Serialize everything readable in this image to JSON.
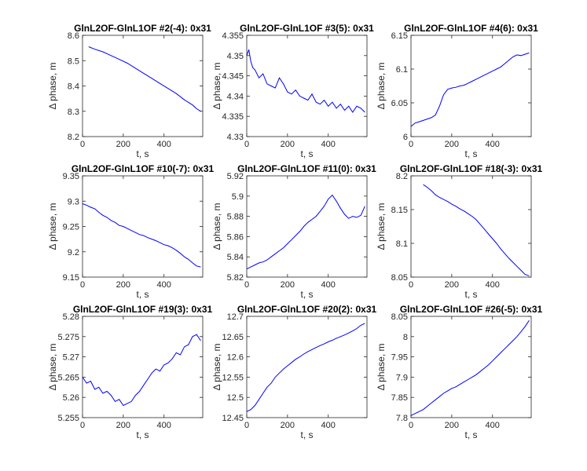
{
  "chart_data": [
    {
      "type": "line",
      "title": "GlnL2OF-GlnL1OF #2(-4): 0x31",
      "xlabel": "t, s",
      "ylabel": "Δ phase, m",
      "xlim": [
        0,
        590
      ],
      "ylim": [
        8.2,
        8.6
      ],
      "xticks": [
        "0",
        "200",
        "400"
      ],
      "yticks": [
        "8.2",
        "8.3",
        "8.4",
        "8.5",
        "8.6"
      ],
      "series": [
        {
          "color": "#0000ff",
          "x": [
            30,
            60,
            100,
            140,
            180,
            220,
            260,
            300,
            340,
            380,
            420,
            460,
            500,
            540,
            560,
            580
          ],
          "y": [
            8.555,
            8.545,
            8.535,
            8.52,
            8.505,
            8.49,
            8.47,
            8.45,
            8.43,
            8.41,
            8.39,
            8.37,
            8.345,
            8.325,
            8.31,
            8.3
          ]
        }
      ]
    },
    {
      "type": "line",
      "title": "GlnL2OF-GlnL1OF #3(5): 0x31",
      "xlabel": "t, s",
      "ylabel": "Δ phase, m",
      "xlim": [
        0,
        590
      ],
      "ylim": [
        4.33,
        4.355
      ],
      "xticks": [
        "0",
        "200",
        "400"
      ],
      "yticks": [
        "4.33",
        "4.335",
        "4.34",
        "4.345",
        "4.35",
        "4.355"
      ],
      "series": [
        {
          "color": "#0000ff",
          "x": [
            0,
            10,
            20,
            30,
            40,
            60,
            80,
            100,
            120,
            140,
            160,
            180,
            200,
            220,
            240,
            260,
            280,
            300,
            320,
            340,
            360,
            380,
            400,
            420,
            440,
            460,
            480,
            500,
            520,
            540,
            560,
            580
          ],
          "y": [
            4.35,
            4.3515,
            4.3485,
            4.347,
            4.3465,
            4.3445,
            4.3455,
            4.343,
            4.3425,
            4.342,
            4.3445,
            4.343,
            4.341,
            4.3405,
            4.3415,
            4.34,
            4.3395,
            4.339,
            4.3405,
            4.3385,
            4.338,
            4.339,
            4.3375,
            4.3385,
            4.337,
            4.338,
            4.3365,
            4.3375,
            4.336,
            4.3375,
            4.337,
            4.336
          ]
        }
      ]
    },
    {
      "type": "line",
      "title": "GlnL2OF-GlnL1OF #4(6): 0x31",
      "xlabel": "t, s",
      "ylabel": "Δ phase, m",
      "xlim": [
        0,
        590
      ],
      "ylim": [
        6,
        6.15
      ],
      "xticks": [
        "0",
        "200",
        "400"
      ],
      "yticks": [
        "6",
        "6.05",
        "6.1",
        "6.15"
      ],
      "series": [
        {
          "color": "#0000ff",
          "x": [
            0,
            20,
            40,
            60,
            80,
            100,
            120,
            140,
            160,
            180,
            200,
            220,
            240,
            260,
            280,
            300,
            320,
            340,
            360,
            380,
            400,
            420,
            440,
            460,
            480,
            500,
            520,
            540,
            560,
            580
          ],
          "y": [
            6.015,
            6.02,
            6.022,
            6.024,
            6.026,
            6.028,
            6.032,
            6.045,
            6.062,
            6.07,
            6.072,
            6.073,
            6.075,
            6.076,
            6.079,
            6.082,
            6.085,
            6.088,
            6.091,
            6.094,
            6.097,
            6.1,
            6.103,
            6.108,
            6.113,
            6.118,
            6.121,
            6.12,
            6.122,
            6.124
          ]
        }
      ]
    },
    {
      "type": "line",
      "title": "GlnL2OF-GlnL1OF #10(-7): 0x31",
      "xlabel": "t, s",
      "ylabel": "Δ phase, m",
      "xlim": [
        0,
        590
      ],
      "ylim": [
        9.15,
        9.35
      ],
      "xticks": [
        "0",
        "200",
        "400"
      ],
      "yticks": [
        "9.15",
        "9.2",
        "9.25",
        "9.3",
        "9.35"
      ],
      "series": [
        {
          "color": "#0000ff",
          "x": [
            0,
            20,
            40,
            60,
            80,
            100,
            120,
            140,
            160,
            180,
            200,
            220,
            240,
            260,
            280,
            300,
            320,
            340,
            360,
            380,
            400,
            420,
            440,
            460,
            480,
            500,
            520,
            540,
            560,
            580
          ],
          "y": [
            9.295,
            9.292,
            9.288,
            9.285,
            9.278,
            9.272,
            9.268,
            9.262,
            9.258,
            9.252,
            9.25,
            9.246,
            9.242,
            9.238,
            9.234,
            9.232,
            9.228,
            9.225,
            9.222,
            9.218,
            9.214,
            9.212,
            9.208,
            9.203,
            9.197,
            9.19,
            9.185,
            9.178,
            9.172,
            9.17
          ]
        }
      ]
    },
    {
      "type": "line",
      "title": "GlnL2OF-GlnL1OF #11(0): 0x31",
      "xlabel": "t, s",
      "ylabel": "Δ phase, m",
      "xlim": [
        0,
        590
      ],
      "ylim": [
        5.82,
        5.92
      ],
      "xticks": [
        "0",
        "200",
        "400"
      ],
      "yticks": [
        "5.82",
        "5.84",
        "5.86",
        "5.88",
        "5.9",
        "5.92"
      ],
      "series": [
        {
          "color": "#0000ff",
          "x": [
            0,
            20,
            40,
            60,
            80,
            100,
            120,
            140,
            160,
            180,
            200,
            220,
            240,
            260,
            280,
            300,
            320,
            340,
            360,
            380,
            400,
            420,
            440,
            460,
            480,
            500,
            520,
            540,
            560,
            580
          ],
          "y": [
            5.828,
            5.83,
            5.832,
            5.834,
            5.835,
            5.837,
            5.84,
            5.843,
            5.846,
            5.849,
            5.853,
            5.857,
            5.861,
            5.865,
            5.87,
            5.874,
            5.877,
            5.88,
            5.885,
            5.89,
            5.897,
            5.901,
            5.895,
            5.888,
            5.882,
            5.878,
            5.88,
            5.879,
            5.881,
            5.89
          ]
        }
      ]
    },
    {
      "type": "line",
      "title": "GlnL2OF-GlnL1OF #18(-3): 0x31",
      "xlabel": "t, s",
      "ylabel": "Δ phase, m",
      "xlim": [
        0,
        590
      ],
      "ylim": [
        8.05,
        8.2
      ],
      "xticks": [
        "0",
        "200",
        "400"
      ],
      "yticks": [
        "8.05",
        "8.1",
        "8.15",
        "8.2"
      ],
      "series": [
        {
          "color": "#0000ff",
          "x": [
            60,
            80,
            100,
            120,
            140,
            160,
            180,
            200,
            220,
            240,
            260,
            280,
            300,
            320,
            340,
            360,
            380,
            400,
            420,
            440,
            460,
            480,
            500,
            520,
            540,
            560,
            580
          ],
          "y": [
            8.187,
            8.183,
            8.178,
            8.172,
            8.168,
            8.165,
            8.162,
            8.158,
            8.155,
            8.151,
            8.148,
            8.144,
            8.14,
            8.135,
            8.128,
            8.121,
            8.114,
            8.107,
            8.1,
            8.092,
            8.085,
            8.078,
            8.072,
            8.066,
            8.06,
            8.054,
            8.052
          ]
        }
      ]
    },
    {
      "type": "line",
      "title": "GlnL2OF-GlnL1OF #19(3): 0x31",
      "xlabel": "t, s",
      "ylabel": "Δ phase, m",
      "xlim": [
        0,
        590
      ],
      "ylim": [
        5.255,
        5.28
      ],
      "xticks": [
        "0",
        "200",
        "400"
      ],
      "yticks": [
        "5.255",
        "5.26",
        "5.265",
        "5.27",
        "5.275",
        "5.28"
      ],
      "series": [
        {
          "color": "#0000ff",
          "x": [
            0,
            20,
            40,
            60,
            80,
            100,
            120,
            140,
            160,
            180,
            200,
            220,
            240,
            260,
            280,
            300,
            320,
            340,
            360,
            380,
            400,
            420,
            440,
            460,
            480,
            500,
            520,
            540,
            560,
            580
          ],
          "y": [
            5.265,
            5.2635,
            5.264,
            5.262,
            5.2625,
            5.261,
            5.2615,
            5.2605,
            5.259,
            5.2595,
            5.258,
            5.2585,
            5.259,
            5.2605,
            5.2615,
            5.263,
            5.2645,
            5.266,
            5.267,
            5.2665,
            5.268,
            5.2685,
            5.2695,
            5.271,
            5.2705,
            5.2725,
            5.273,
            5.275,
            5.2755,
            5.274
          ]
        }
      ]
    },
    {
      "type": "line",
      "title": "GlnL2OF-GlnL1OF #20(2): 0x31",
      "xlabel": "t, s",
      "ylabel": "Δ phase, m",
      "xlim": [
        0,
        590
      ],
      "ylim": [
        12.45,
        12.7
      ],
      "xticks": [
        "0",
        "200",
        "400"
      ],
      "yticks": [
        "12.45",
        "12.5",
        "12.55",
        "12.6",
        "12.65",
        "12.7"
      ],
      "series": [
        {
          "color": "#0000ff",
          "x": [
            0,
            20,
            40,
            60,
            80,
            100,
            120,
            140,
            160,
            180,
            200,
            220,
            240,
            260,
            280,
            300,
            320,
            340,
            360,
            380,
            400,
            420,
            440,
            460,
            480,
            500,
            520,
            540,
            560,
            580
          ],
          "y": [
            12.465,
            12.47,
            12.48,
            12.495,
            12.51,
            12.525,
            12.535,
            12.55,
            12.56,
            12.57,
            12.578,
            12.586,
            12.594,
            12.6,
            12.607,
            12.613,
            12.618,
            12.623,
            12.628,
            12.632,
            12.637,
            12.641,
            12.646,
            12.65,
            12.654,
            12.659,
            12.664,
            12.67,
            12.678,
            12.683
          ]
        }
      ]
    },
    {
      "type": "line",
      "title": "GlnL2OF-GlnL1OF #26(-5): 0x31",
      "xlabel": "t, s",
      "ylabel": "Δ phase, m",
      "xlim": [
        0,
        590
      ],
      "ylim": [
        7.8,
        8.05
      ],
      "xticks": [
        "0",
        "200",
        "400"
      ],
      "yticks": [
        "7.8",
        "7.85",
        "7.9",
        "7.95",
        "8",
        "8.05"
      ],
      "series": [
        {
          "color": "#0000ff",
          "x": [
            0,
            20,
            40,
            60,
            80,
            100,
            120,
            140,
            160,
            180,
            200,
            220,
            240,
            260,
            280,
            300,
            320,
            340,
            360,
            380,
            400,
            420,
            440,
            460,
            480,
            500,
            520,
            540,
            560,
            580
          ],
          "y": [
            7.805,
            7.81,
            7.815,
            7.82,
            7.828,
            7.836,
            7.844,
            7.852,
            7.86,
            7.866,
            7.872,
            7.876,
            7.882,
            7.888,
            7.894,
            7.9,
            7.906,
            7.914,
            7.922,
            7.93,
            7.94,
            7.95,
            7.96,
            7.97,
            7.98,
            7.99,
            8.0,
            8.012,
            8.025,
            8.04
          ]
        }
      ]
    }
  ]
}
